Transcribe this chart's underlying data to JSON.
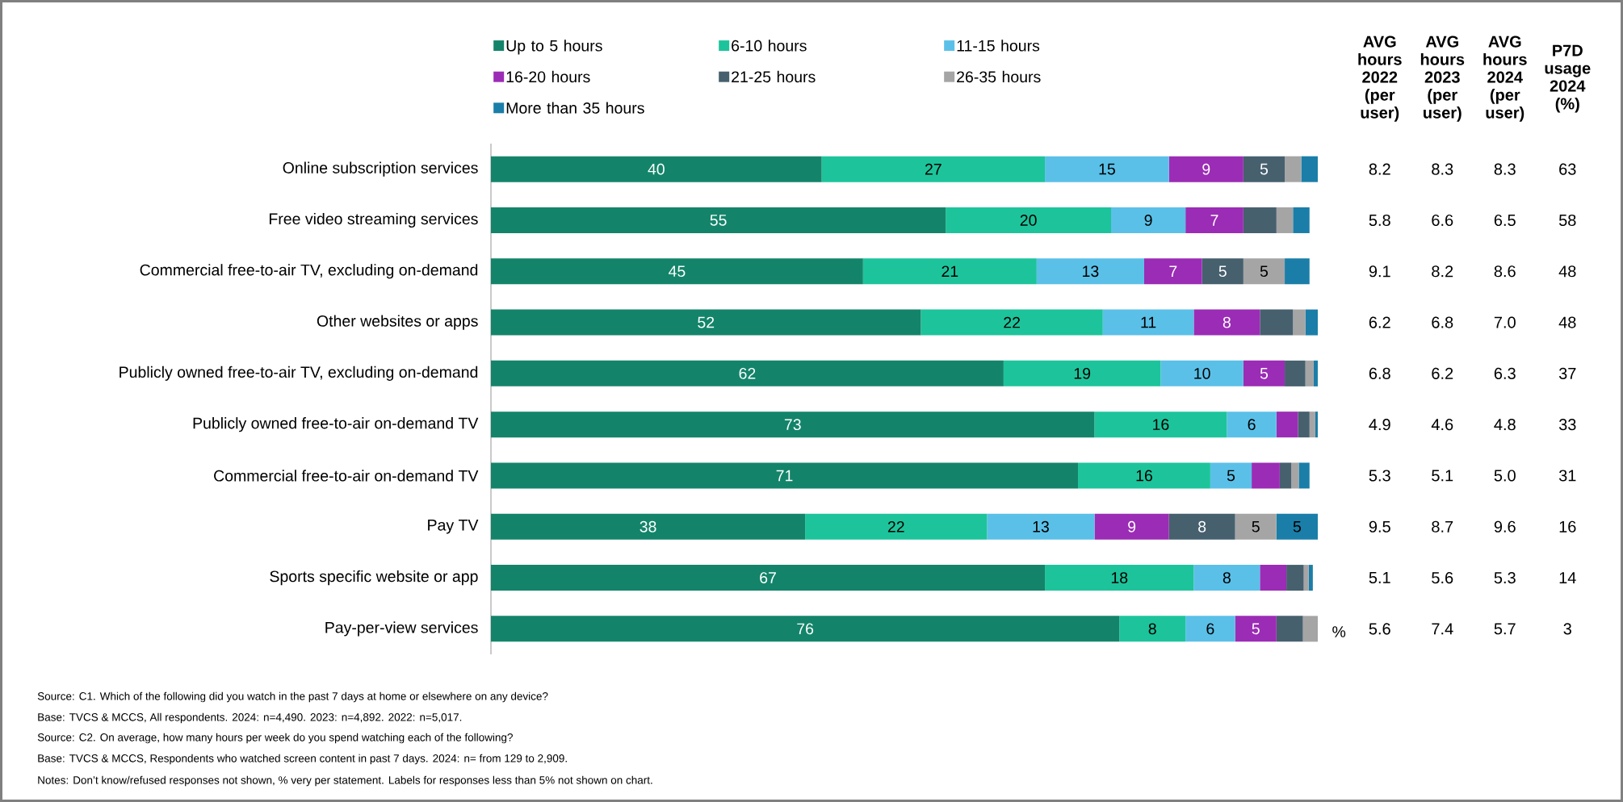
{
  "chart_data": [
    {
      "type": "bar",
      "orientation": "horizontal",
      "stacked": true,
      "legend": "top",
      "tick_labels": "y",
      "categories": [
        "Online subscription services",
        "Free video streaming services",
        "Commercial free-to-air TV, excluding on-demand",
        "Other websites or apps",
        "Publicly owned free-to-air TV, excluding on-demand",
        "Publicly owned free-to-air on-demand TV",
        "Commercial free-to-air on-demand TV",
        "Pay TV",
        "Sports specific website or app",
        "Pay-per-view services"
      ],
      "series": [
        {
          "name": "Up to 5 hours",
          "color": "#13846a",
          "values": [
            40,
            55,
            45,
            52,
            62,
            73,
            71,
            38,
            67,
            76
          ],
          "value_labels": [
            "40",
            "55",
            "45",
            "52",
            "62",
            "73",
            "71",
            "38",
            "67",
            "76"
          ]
        },
        {
          "name": "6-10 hours",
          "color": "#1dc49b",
          "values": [
            27,
            20,
            21,
            22,
            19,
            16,
            16,
            22,
            18,
            8
          ],
          "value_labels": [
            "27",
            "20",
            "21",
            "22",
            "19",
            "16",
            "16",
            "22",
            "18",
            "8"
          ]
        },
        {
          "name": "11-15 hours",
          "color": "#5bc0e8",
          "values": [
            15,
            9,
            13,
            11,
            10,
            6,
            5,
            13,
            8,
            6
          ],
          "value_labels": [
            "15",
            "9",
            "13",
            "11",
            "10",
            "6",
            "5",
            "13",
            "8",
            "6"
          ]
        },
        {
          "name": "16-20 hours",
          "color": "#9b2cb5",
          "values": [
            9,
            7,
            7,
            8,
            5,
            2.6,
            3.4,
            9,
            3.2,
            5
          ],
          "value_labels": [
            "9",
            "7",
            "7",
            "8",
            "5",
            null,
            null,
            "9",
            null,
            "5"
          ]
        },
        {
          "name": "21-25 hours",
          "color": "#46606e",
          "values": [
            5,
            4,
            5,
            4,
            2.5,
            1.4,
            1.4,
            8,
            2.1,
            3.2
          ],
          "value_labels": [
            "5",
            null,
            "5",
            null,
            null,
            null,
            null,
            "8",
            null,
            null
          ]
        },
        {
          "name": "26-35 hours",
          "color": "#a5a5a5",
          "values": [
            2,
            2,
            5,
            1.5,
            1,
            0.7,
            0.9,
            5,
            0.6,
            1.8
          ],
          "value_labels": [
            null,
            null,
            "5",
            null,
            null,
            null,
            null,
            "5",
            null,
            null
          ]
        },
        {
          "name": "More than 35 hours",
          "color": "#1a7ea8",
          "values": [
            2,
            2,
            3,
            1.5,
            0.5,
            0.3,
            1.3,
            5,
            0.5,
            0
          ],
          "value_labels": [
            null,
            null,
            null,
            null,
            null,
            null,
            null,
            "5",
            null,
            null
          ]
        }
      ],
      "annotations": [
        "%",
        "Source: C1. Which of the following did you watch in the past 7 days at home or elsewhere on any device?",
        "Base: TVCS & MCCS, All respondents. 2024: n=4,490. 2023: n=4,892. 2022: n=5,017.",
        "Source: C2. On average, how many hours per week do you spend watching each of the following?",
        "Base: TVCS & MCCS, Respondents who watched screen content in past 7 days. 2024: n= from 129 to 2,909.",
        "Notes: Don’t know/refused responses not shown, % very per statement. Labels for responses less than 5% not shown on chart."
      ]
    },
    {
      "type": "other",
      "annotations": [
        "AVG hours 2022 (per user)",
        "AVG hours 2023 (per user)",
        "AVG hours 2024 (per user)",
        "P7D usage 2024 (%)",
        "8.2",
        "8.3",
        "8.3",
        "63",
        "5.8",
        "6.6",
        "6.5",
        "58",
        "9.1",
        "8.2",
        "8.6",
        "48",
        "6.2",
        "6.8",
        "7.0",
        "48",
        "6.8",
        "6.2",
        "6.3",
        "37",
        "4.9",
        "4.6",
        "4.8",
        "33",
        "5.3",
        "5.1",
        "5.0",
        "31",
        "9.5",
        "8.7",
        "9.6",
        "16",
        "5.1",
        "5.6",
        "5.3",
        "14",
        "5.6",
        "7.4",
        "5.7",
        "3"
      ]
    }
  ]
}
